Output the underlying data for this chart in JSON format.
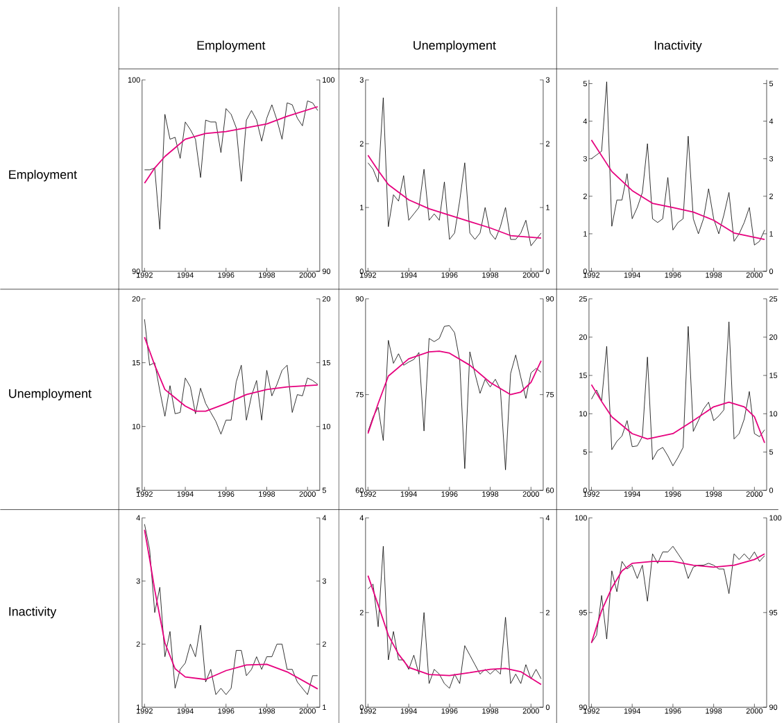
{
  "chart_data": [
    {
      "type": "line",
      "title": "Employment",
      "ylabel": "Employment",
      "x": [
        1992,
        1992.25,
        1992.5,
        1992.75,
        1993,
        1993.25,
        1993.5,
        1993.75,
        1994,
        1994.25,
        1994.5,
        1994.75,
        1995,
        1995.25,
        1995.5,
        1995.75,
        1996,
        1996.25,
        1996.5,
        1996.75,
        1997,
        1997.25,
        1997.5,
        1997.75,
        1998,
        1998.25,
        1998.5,
        1998.75,
        1999,
        1999.25,
        1999.5,
        1999.75,
        2000,
        2000.25,
        2000.5
      ],
      "xlim": [
        1991.875,
        2000.6
      ],
      "xticks": [
        1992,
        1994,
        1996,
        1998,
        2000
      ],
      "ylim": [
        90,
        100
      ],
      "yticks": [
        90,
        100
      ],
      "y2lim": [
        90,
        100
      ],
      "y2ticks": [
        90,
        100
      ],
      "series": [
        {
          "type": "line",
          "color": "#000000",
          "values": [
            95.3,
            95.3,
            95.4,
            92.2,
            98.2,
            96.9,
            97.0,
            95.9,
            97.8,
            97.4,
            96.9,
            94.9,
            97.9,
            97.8,
            97.8,
            96.2,
            98.5,
            98.2,
            97.5,
            94.7,
            97.9,
            98.4,
            97.9,
            96.8,
            98.0,
            98.7,
            97.9,
            96.9,
            98.8,
            98.7,
            98.0,
            97.6,
            98.9,
            98.8,
            98.4
          ]
        },
        {
          "type": "line",
          "color": "#e6007e",
          "x": [
            1992,
            1992.5,
            1993,
            1994,
            1995,
            1996,
            1997,
            1998,
            1999,
            2000.5
          ],
          "values": [
            94.6,
            95.4,
            96.0,
            96.9,
            97.2,
            97.3,
            97.5,
            97.7,
            98.1,
            98.6
          ]
        }
      ]
    },
    {
      "type": "line",
      "title": "Unemployment",
      "x": [
        1992,
        1992.25,
        1992.5,
        1992.75,
        1993,
        1993.25,
        1993.5,
        1993.75,
        1994,
        1994.25,
        1994.5,
        1994.75,
        1995,
        1995.25,
        1995.5,
        1995.75,
        1996,
        1996.25,
        1996.5,
        1996.75,
        1997,
        1997.25,
        1997.5,
        1997.75,
        1998,
        1998.25,
        1998.5,
        1998.75,
        1999,
        1999.25,
        1999.5,
        1999.75,
        2000,
        2000.25,
        2000.5
      ],
      "xlim": [
        1991.875,
        2000.6
      ],
      "xticks": [
        1992,
        1994,
        1996,
        1998,
        2000
      ],
      "ylim": [
        0,
        3
      ],
      "yticks": [
        0,
        1,
        2,
        3
      ],
      "y2lim": [
        0,
        3
      ],
      "y2ticks": [
        0,
        1,
        2,
        3
      ],
      "series": [
        {
          "type": "line",
          "color": "#000000",
          "values": [
            1.7,
            1.6,
            1.4,
            2.72,
            0.7,
            1.2,
            1.1,
            1.5,
            0.8,
            0.9,
            1.0,
            1.6,
            0.8,
            0.9,
            0.8,
            1.4,
            0.5,
            0.6,
            1.1,
            1.7,
            0.6,
            0.5,
            0.6,
            1.0,
            0.6,
            0.5,
            0.7,
            1.0,
            0.5,
            0.5,
            0.6,
            0.8,
            0.4,
            0.5,
            0.6
          ]
        },
        {
          "type": "line",
          "color": "#e6007e",
          "x": [
            1992,
            1992.5,
            1993,
            1994,
            1995,
            1996,
            1997,
            1998,
            1999,
            2000.5
          ],
          "values": [
            1.82,
            1.58,
            1.36,
            1.12,
            0.98,
            0.88,
            0.78,
            0.68,
            0.56,
            0.52
          ]
        }
      ]
    },
    {
      "type": "line",
      "title": "Inactivity",
      "x": [
        1992,
        1992.25,
        1992.5,
        1992.75,
        1993,
        1993.25,
        1993.5,
        1993.75,
        1994,
        1994.25,
        1994.5,
        1994.75,
        1995,
        1995.25,
        1995.5,
        1995.75,
        1996,
        1996.25,
        1996.5,
        1996.75,
        1997,
        1997.25,
        1997.5,
        1997.75,
        1998,
        1998.25,
        1998.5,
        1998.75,
        1999,
        1999.25,
        1999.5,
        1999.75,
        2000,
        2000.25,
        2000.5
      ],
      "xlim": [
        1991.875,
        2000.6
      ],
      "xticks": [
        1992,
        1994,
        1996,
        1998,
        2000
      ],
      "ylim": [
        0,
        5.1
      ],
      "yticks": [
        0,
        1,
        2,
        3,
        4,
        5
      ],
      "y2lim": [
        0,
        5.1
      ],
      "y2ticks": [
        0,
        1,
        2,
        3,
        4,
        5
      ],
      "series": [
        {
          "type": "line",
          "color": "#000000",
          "values": [
            3.0,
            3.1,
            3.2,
            5.05,
            1.2,
            1.9,
            1.9,
            2.6,
            1.4,
            1.7,
            2.1,
            3.4,
            1.4,
            1.3,
            1.4,
            2.5,
            1.1,
            1.3,
            1.4,
            3.6,
            1.4,
            1.0,
            1.4,
            2.2,
            1.4,
            1.0,
            1.5,
            2.1,
            0.8,
            1.0,
            1.3,
            1.7,
            0.7,
            0.8,
            1.1
          ]
        },
        {
          "type": "line",
          "color": "#e6007e",
          "x": [
            1992,
            1992.5,
            1993,
            1994,
            1995,
            1996,
            1997,
            1998,
            1999,
            2000.5
          ],
          "values": [
            3.5,
            3.08,
            2.66,
            2.15,
            1.81,
            1.7,
            1.58,
            1.36,
            1.02,
            0.85
          ]
        }
      ]
    },
    {
      "type": "line",
      "ylabel": "Unemployment",
      "x": [
        1992,
        1992.25,
        1992.5,
        1992.75,
        1993,
        1993.25,
        1993.5,
        1993.75,
        1994,
        1994.25,
        1994.5,
        1994.75,
        1995,
        1995.25,
        1995.5,
        1995.75,
        1996,
        1996.25,
        1996.5,
        1996.75,
        1997,
        1997.25,
        1997.5,
        1997.75,
        1998,
        1998.25,
        1998.5,
        1998.75,
        1999,
        1999.25,
        1999.5,
        1999.75,
        2000,
        2000.25,
        2000.5
      ],
      "xlim": [
        1991.875,
        2000.6
      ],
      "xticks": [
        1992,
        1994,
        1996,
        1998,
        2000
      ],
      "ylim": [
        5,
        20
      ],
      "yticks": [
        5,
        10,
        15,
        20
      ],
      "y2lim": [
        5,
        20
      ],
      "y2ticks": [
        5,
        10,
        15,
        20
      ],
      "series": [
        {
          "type": "line",
          "color": "#000000",
          "values": [
            18.4,
            14.8,
            15.0,
            12.8,
            10.8,
            13.2,
            11.0,
            11.1,
            13.8,
            13.1,
            11.0,
            13.0,
            11.8,
            11.1,
            10.4,
            9.4,
            10.5,
            10.5,
            13.5,
            14.8,
            10.5,
            12.4,
            13.6,
            10.5,
            14.4,
            12.4,
            13.3,
            14.4,
            14.8,
            11.1,
            12.5,
            12.4,
            13.8,
            13.6,
            13.3
          ]
        },
        {
          "type": "line",
          "color": "#e6007e",
          "x": [
            1992,
            1992.5,
            1993,
            1994,
            1994.5,
            1995,
            1996,
            1997,
            1998,
            1999,
            2000.5
          ],
          "values": [
            17.0,
            14.8,
            12.9,
            11.6,
            11.2,
            11.2,
            11.8,
            12.5,
            12.9,
            13.1,
            13.25
          ]
        }
      ]
    },
    {
      "type": "line",
      "x": [
        1992,
        1992.25,
        1992.5,
        1992.75,
        1993,
        1993.25,
        1993.5,
        1993.75,
        1994,
        1994.25,
        1994.5,
        1994.75,
        1995,
        1995.25,
        1995.5,
        1995.75,
        1996,
        1996.25,
        1996.5,
        1996.75,
        1997,
        1997.25,
        1997.5,
        1997.75,
        1998,
        1998.25,
        1998.5,
        1998.75,
        1999,
        1999.25,
        1999.5,
        1999.75,
        2000,
        2000.25,
        2000.5
      ],
      "xlim": [
        1991.875,
        2000.6
      ],
      "xticks": [
        1992,
        1994,
        1996,
        1998,
        2000
      ],
      "ylim": [
        60,
        90
      ],
      "yticks": [
        60,
        75,
        90
      ],
      "y2lim": [
        60,
        90
      ],
      "y2ticks": [
        60,
        75,
        90
      ],
      "series": [
        {
          "type": "line",
          "color": "#000000",
          "values": [
            69.2,
            71.5,
            73.0,
            67.8,
            83.5,
            79.9,
            81.4,
            79.6,
            80.1,
            80.5,
            81.6,
            69.3,
            83.8,
            83.3,
            83.8,
            85.7,
            85.8,
            84.7,
            80.4,
            63.4,
            81.7,
            78.3,
            75.2,
            77.4,
            76.2,
            77.4,
            75.8,
            63.2,
            78.3,
            81.2,
            77.7,
            74.4,
            78.4,
            79.1,
            78.5
          ]
        },
        {
          "type": "line",
          "color": "#e6007e",
          "x": [
            1992,
            1992.5,
            1993,
            1994,
            1995,
            1995.5,
            1996,
            1997,
            1998,
            1999,
            1999.5,
            2000,
            2000.5
          ],
          "values": [
            68.9,
            73.6,
            77.9,
            80.6,
            81.7,
            81.8,
            81.5,
            79.6,
            76.9,
            75.0,
            75.4,
            76.9,
            80.3
          ]
        }
      ]
    },
    {
      "type": "line",
      "x": [
        1992,
        1992.25,
        1992.5,
        1992.75,
        1993,
        1993.25,
        1993.5,
        1993.75,
        1994,
        1994.25,
        1994.5,
        1994.75,
        1995,
        1995.25,
        1995.5,
        1995.75,
        1996,
        1996.25,
        1996.5,
        1996.75,
        1997,
        1997.25,
        1997.5,
        1997.75,
        1998,
        1998.25,
        1998.5,
        1998.75,
        1999,
        1999.25,
        1999.5,
        1999.75,
        2000,
        2000.25,
        2000.5
      ],
      "xlim": [
        1991.875,
        2000.6
      ],
      "xticks": [
        1992,
        1994,
        1996,
        1998,
        2000
      ],
      "ylim": [
        0,
        25
      ],
      "yticks": [
        0,
        5,
        10,
        15,
        20,
        25
      ],
      "y2lim": [
        0,
        25
      ],
      "y2ticks": [
        0,
        5,
        10,
        15,
        20,
        25
      ],
      "series": [
        {
          "type": "line",
          "color": "#000000",
          "values": [
            11.9,
            13.1,
            11.7,
            18.8,
            5.3,
            6.4,
            7.1,
            9.1,
            5.7,
            5.8,
            7.0,
            17.4,
            4.0,
            5.2,
            5.6,
            4.5,
            3.2,
            4.3,
            5.6,
            21.4,
            7.7,
            9.1,
            10.6,
            11.5,
            9.1,
            9.7,
            10.5,
            22.0,
            6.7,
            7.4,
            9.3,
            12.9,
            7.4,
            7.0,
            7.9
          ]
        },
        {
          "type": "line",
          "color": "#e6007e",
          "x": [
            1992,
            1992.5,
            1993,
            1994,
            1994.75,
            1996,
            1997,
            1998,
            1998.75,
            1999.5,
            2000,
            2000.5
          ],
          "values": [
            13.8,
            11.6,
            9.6,
            7.4,
            6.7,
            7.4,
            9.1,
            10.9,
            11.5,
            10.9,
            9.6,
            6.2
          ]
        }
      ]
    },
    {
      "type": "line",
      "ylabel": "Inactivity",
      "x": [
        1992,
        1992.25,
        1992.5,
        1992.75,
        1993,
        1993.25,
        1993.5,
        1993.75,
        1994,
        1994.25,
        1994.5,
        1994.75,
        1995,
        1995.25,
        1995.5,
        1995.75,
        1996,
        1996.25,
        1996.5,
        1996.75,
        1997,
        1997.25,
        1997.5,
        1997.75,
        1998,
        1998.25,
        1998.5,
        1998.75,
        1999,
        1999.25,
        1999.5,
        1999.75,
        2000,
        2000.25,
        2000.5
      ],
      "xlim": [
        1991.875,
        2000.6
      ],
      "xticks": [
        1992,
        1994,
        1996,
        1998,
        2000
      ],
      "ylim": [
        1,
        4
      ],
      "yticks": [
        1,
        2,
        3,
        4
      ],
      "y2lim": [
        1,
        4
      ],
      "y2ticks": [
        1,
        2,
        3,
        4
      ],
      "series": [
        {
          "type": "line",
          "color": "#000000",
          "values": [
            3.9,
            3.5,
            2.5,
            2.9,
            1.8,
            2.2,
            1.3,
            1.6,
            1.7,
            2.0,
            1.8,
            2.3,
            1.4,
            1.6,
            1.2,
            1.3,
            1.2,
            1.3,
            1.9,
            1.9,
            1.5,
            1.6,
            1.8,
            1.6,
            1.8,
            1.8,
            2.0,
            2.0,
            1.6,
            1.6,
            1.4,
            1.3,
            1.2,
            1.5,
            1.5
          ]
        },
        {
          "type": "line",
          "color": "#e6007e",
          "x": [
            1992,
            1992.25,
            1992.5,
            1993,
            1993.5,
            1994,
            1995,
            1996,
            1997,
            1998,
            1999,
            2000.5
          ],
          "values": [
            3.81,
            3.35,
            2.86,
            2.02,
            1.61,
            1.48,
            1.44,
            1.58,
            1.67,
            1.68,
            1.56,
            1.29
          ]
        }
      ]
    },
    {
      "type": "line",
      "x": [
        1992,
        1992.25,
        1992.5,
        1992.75,
        1993,
        1993.25,
        1993.5,
        1993.75,
        1994,
        1994.25,
        1994.5,
        1994.75,
        1995,
        1995.25,
        1995.5,
        1995.75,
        1996,
        1996.25,
        1996.5,
        1996.75,
        1997,
        1997.25,
        1997.5,
        1997.75,
        1998,
        1998.25,
        1998.5,
        1998.75,
        1999,
        1999.25,
        1999.5,
        1999.75,
        2000,
        2000.25,
        2000.5
      ],
      "xlim": [
        1991.875,
        2000.6
      ],
      "xticks": [
        1992,
        1994,
        1996,
        1998,
        2000
      ],
      "ylim": [
        0,
        4
      ],
      "yticks": [
        0,
        2,
        4
      ],
      "y2lim": [
        0,
        4
      ],
      "y2ticks": [
        0,
        2,
        4
      ],
      "series": [
        {
          "type": "line",
          "color": "#000000",
          "values": [
            2.5,
            2.6,
            1.7,
            3.4,
            1.0,
            1.6,
            1.0,
            1.0,
            0.8,
            1.1,
            0.7,
            2.0,
            0.5,
            0.8,
            0.7,
            0.5,
            0.4,
            0.7,
            0.5,
            1.3,
            1.1,
            0.9,
            0.7,
            0.8,
            0.7,
            0.8,
            0.7,
            1.9,
            0.5,
            0.7,
            0.5,
            0.9,
            0.6,
            0.8,
            0.6
          ]
        },
        {
          "type": "line",
          "color": "#e6007e",
          "x": [
            1992,
            1992.5,
            1993,
            1993.5,
            1994,
            1995,
            1996,
            1997,
            1998,
            1998.75,
            1999.5,
            2000.5
          ],
          "values": [
            2.78,
            2.16,
            1.52,
            1.12,
            0.84,
            0.69,
            0.67,
            0.73,
            0.8,
            0.82,
            0.75,
            0.48
          ]
        }
      ]
    },
    {
      "type": "line",
      "x": [
        1992,
        1992.25,
        1992.5,
        1992.75,
        1993,
        1993.25,
        1993.5,
        1993.75,
        1994,
        1994.25,
        1994.5,
        1994.75,
        1995,
        1995.25,
        1995.5,
        1995.75,
        1996,
        1996.25,
        1996.5,
        1996.75,
        1997,
        1997.25,
        1997.5,
        1997.75,
        1998,
        1998.25,
        1998.5,
        1998.75,
        1999,
        1999.25,
        1999.5,
        1999.75,
        2000,
        2000.25,
        2000.5
      ],
      "xlim": [
        1991.875,
        2000.6
      ],
      "xticks": [
        1992,
        1994,
        1996,
        1998,
        2000
      ],
      "ylim": [
        90,
        100
      ],
      "yticks": [
        90,
        95,
        100
      ],
      "y2lim": [
        90,
        100
      ],
      "y2ticks": [
        90,
        95,
        100
      ],
      "series": [
        {
          "type": "line",
          "color": "#000000",
          "values": [
            93.4,
            93.8,
            95.9,
            93.6,
            97.2,
            96.1,
            97.7,
            97.3,
            97.5,
            96.8,
            97.5,
            95.6,
            98.1,
            97.6,
            98.2,
            98.2,
            98.5,
            98.1,
            97.7,
            96.8,
            97.4,
            97.5,
            97.5,
            97.6,
            97.5,
            97.3,
            97.3,
            96.0,
            98.1,
            97.8,
            98.1,
            97.8,
            98.2,
            97.7,
            98.0
          ]
        },
        {
          "type": "line",
          "color": "#e6007e",
          "x": [
            1992,
            1992.5,
            1993,
            1993.5,
            1994,
            1995,
            1996,
            1997,
            1998,
            1999,
            2000,
            2000.5
          ],
          "values": [
            93.4,
            95.1,
            96.3,
            97.2,
            97.6,
            97.7,
            97.7,
            97.5,
            97.4,
            97.5,
            97.8,
            98.1
          ]
        }
      ]
    }
  ]
}
